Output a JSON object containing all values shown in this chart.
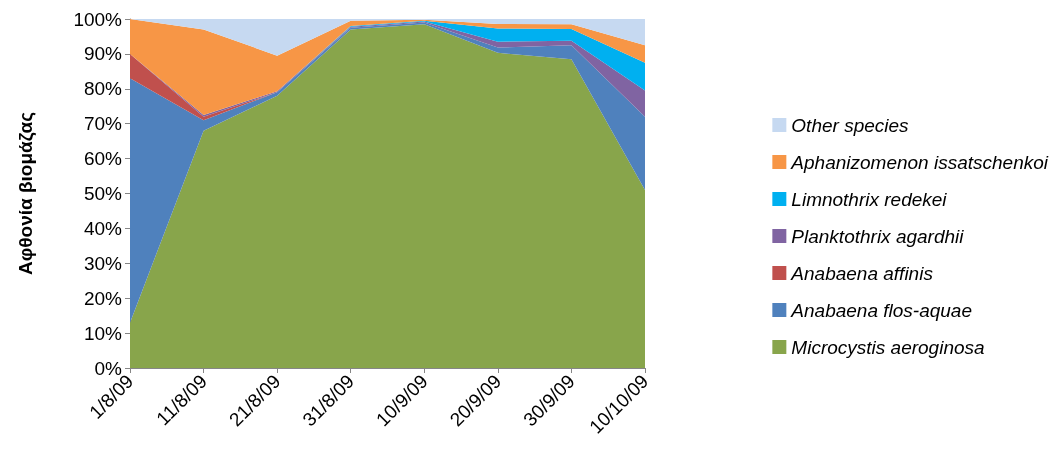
{
  "chart_data": {
    "type": "area",
    "stacked": true,
    "ylabel": "Αφθονία βιομάζας",
    "categories": [
      "1/8/09",
      "11/8/09",
      "21/8/09",
      "31/8/09",
      "10/9/09",
      "20/9/09",
      "30/9/09",
      "10/10/09"
    ],
    "series": [
      {
        "name": "Microcystis aeroginosa",
        "color": "#88a54b",
        "values": [
          13,
          68,
          78,
          97,
          98.5,
          90.3,
          88.5,
          51
        ]
      },
      {
        "name": "Anabaena flos-aquae",
        "color": "#4f81bd",
        "values": [
          70,
          3,
          1,
          0.5,
          0.5,
          1.5,
          4,
          21
        ]
      },
      {
        "name": "Anabaena affinis",
        "color": "#c0504d",
        "values": [
          7,
          1,
          0,
          0,
          0,
          0,
          0,
          0
        ]
      },
      {
        "name": "Planktothrix agardhii",
        "color": "#8064a2",
        "values": [
          0,
          0.5,
          0.3,
          0.3,
          0.3,
          1.7,
          1.3,
          7.5
        ]
      },
      {
        "name": "Limnothrix redekei",
        "color": "#00b0f0",
        "values": [
          0,
          0,
          0,
          0.2,
          0.2,
          3.8,
          3.3,
          8
        ]
      },
      {
        "name": "Aphanizomenon issatschenkoi",
        "color": "#f79646",
        "values": [
          10,
          24.5,
          10.2,
          1.5,
          0.3,
          1.3,
          1.4,
          5
        ]
      },
      {
        "name": "Other species",
        "color": "#c6d9f1",
        "values": [
          0,
          3,
          10.5,
          0.5,
          0.2,
          1.4,
          1.5,
          7.5
        ]
      }
    ],
    "ylim": [
      0,
      100
    ],
    "yticks": [
      {
        "value": 0,
        "label": "0%"
      },
      {
        "value": 10,
        "label": "10%"
      },
      {
        "value": 20,
        "label": "20%"
      },
      {
        "value": 30,
        "label": "30%"
      },
      {
        "value": 40,
        "label": "40%"
      },
      {
        "value": 50,
        "label": "50%"
      },
      {
        "value": 60,
        "label": "60%"
      },
      {
        "value": 70,
        "label": "70%"
      },
      {
        "value": 80,
        "label": "80%"
      },
      {
        "value": 90,
        "label": "90%"
      },
      {
        "value": 100,
        "label": "100%"
      }
    ],
    "grid": false,
    "legend": "right"
  }
}
